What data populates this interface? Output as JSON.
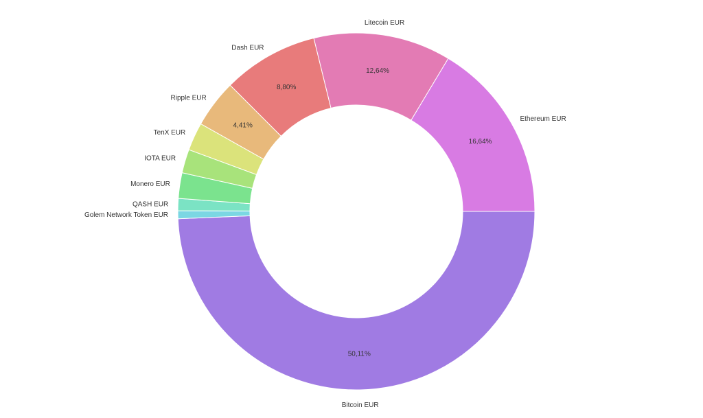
{
  "chart_data": {
    "type": "pie",
    "donut": true,
    "title": "",
    "legend": "none",
    "slices": [
      {
        "label": "Bitcoin EUR",
        "value": 50.11,
        "value_text": "50,11%",
        "color": "#a07be3"
      },
      {
        "label": "Golem Network Token EUR",
        "value": 0.73,
        "value_text": "",
        "color": "#7bd7e3"
      },
      {
        "label": "QASH EUR",
        "value": 1.12,
        "value_text": "",
        "color": "#7be3c4"
      },
      {
        "label": "Monero EUR",
        "value": 2.35,
        "value_text": "",
        "color": "#7be38e"
      },
      {
        "label": "IOTA EUR",
        "value": 2.18,
        "value_text": "",
        "color": "#a8e37b"
      },
      {
        "label": "TenX EUR",
        "value": 2.58,
        "value_text": "",
        "color": "#dbe37b"
      },
      {
        "label": "Ripple EUR",
        "value": 4.41,
        "value_text": "4,41%",
        "color": "#e8b97b"
      },
      {
        "label": "Dash EUR",
        "value": 8.8,
        "value_text": "8,80%",
        "color": "#e87b7b"
      },
      {
        "label": "Litecoin EUR",
        "value": 12.64,
        "value_text": "12,64%",
        "color": "#e37bb4"
      },
      {
        "label": "Ethereum EUR",
        "value": 16.64,
        "value_text": "16,64%",
        "color": "#d87be3"
      }
    ]
  }
}
